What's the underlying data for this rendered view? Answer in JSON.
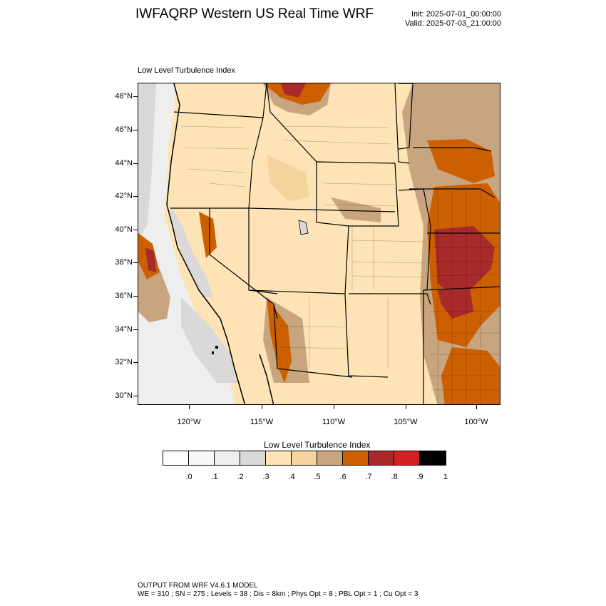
{
  "header": {
    "title": "IWFAQRP Western US Real Time WRF",
    "init": "Init: 2025-07-01_00:00:00",
    "valid": "Valid: 2025-07-03_21:00:00"
  },
  "map": {
    "field_title": "Low Level Turbulence Index",
    "lat_labels": [
      "48°N",
      "46°N",
      "44°N",
      "42°N",
      "40°N",
      "38°N",
      "36°N",
      "34°N",
      "32°N",
      "30°N"
    ],
    "lon_labels": [
      "120°W",
      "115°W",
      "110°W",
      "105°W",
      "100°W"
    ]
  },
  "colorbar": {
    "title": "Low Level Turbulence Index",
    "labels": [
      ".0",
      ".1",
      ".2",
      ".3",
      ".4",
      ".5",
      ".6",
      ".7",
      ".8",
      ".9",
      "1"
    ],
    "colors": [
      "#ffffff",
      "#f7f7f7",
      "#eeeeee",
      "#d9d9d9",
      "#fde3b5",
      "#f5d39c",
      "#c9a57f",
      "#cc6000",
      "#a82a2a",
      "#d42020",
      "#000000"
    ]
  },
  "footer": {
    "line1": "OUTPUT FROM WRF V4.6.1 MODEL",
    "line2": "WE = 310 ; SN = 275 ; Levels = 38 ; Dis = 8km ; Phys Opt = 8 ; PBL Opt = 1 ; Cu Opt = 3"
  }
}
